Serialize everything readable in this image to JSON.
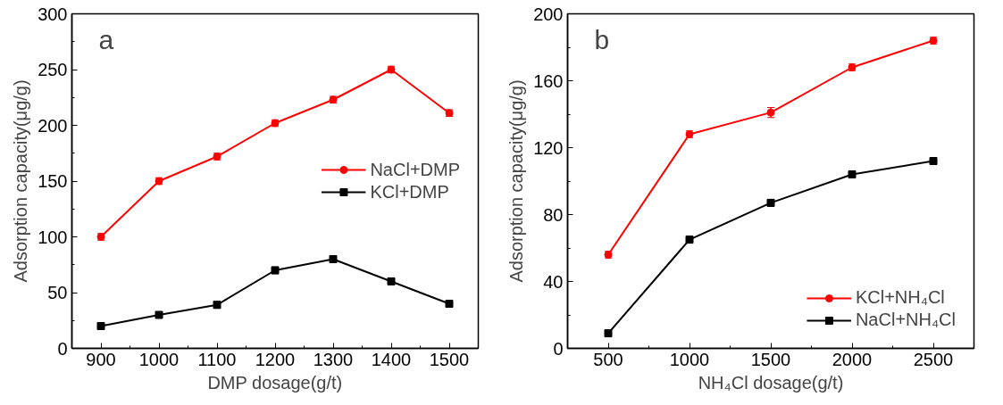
{
  "chart_data": [
    {
      "type": "line",
      "xlabel": "DMP dosage(g/t)",
      "ylabel": "Adsorption capacity(μg/g)",
      "annotations": [
        "a"
      ],
      "x": [
        900,
        1000,
        1100,
        1200,
        1300,
        1400,
        1500
      ],
      "xlim": [
        850,
        1550
      ],
      "xticks": [
        900,
        1000,
        1100,
        1200,
        1300,
        1400,
        1500
      ],
      "ylim": [
        0,
        300
      ],
      "yticks": [
        0,
        50,
        100,
        150,
        200,
        250,
        300
      ],
      "grid": false,
      "legend": "right",
      "series": [
        {
          "name": "NaCl+DMP",
          "color": "#ff0000",
          "marker": "circle",
          "values": [
            100,
            150,
            172,
            202,
            223,
            250,
            211
          ],
          "errors": [
            3,
            3,
            3,
            3,
            3,
            3,
            3
          ]
        },
        {
          "name": "KCl+DMP",
          "color": "#000000",
          "marker": "square",
          "values": [
            20,
            30,
            39,
            70,
            80,
            60,
            40
          ],
          "errors": [
            2,
            2,
            3,
            3,
            3,
            2,
            2
          ]
        }
      ]
    },
    {
      "type": "line",
      "xlabel": "NH₄Cl dosage(g/t)",
      "ylabel": "Adsorption capacity(μg/g)",
      "annotations": [
        "b"
      ],
      "x": [
        500,
        1000,
        1500,
        2000,
        2500
      ],
      "xlim": [
        250,
        2750
      ],
      "xticks": [
        500,
        1000,
        1500,
        2000,
        2500
      ],
      "ylim": [
        0,
        200
      ],
      "yticks": [
        0,
        40,
        80,
        120,
        160,
        200
      ],
      "grid": false,
      "legend": "bottom right",
      "series": [
        {
          "name": "KCl+NH₄Cl",
          "color": "#ff0000",
          "marker": "circle",
          "values": [
            56,
            128,
            141,
            168,
            184
          ],
          "errors": [
            2,
            2,
            3,
            2,
            2
          ]
        },
        {
          "name": "NaCl+NH₄Cl",
          "color": "#000000",
          "marker": "square",
          "values": [
            9,
            65,
            87,
            104,
            112
          ],
          "errors": [
            1,
            2,
            2,
            2,
            2
          ]
        }
      ]
    }
  ]
}
